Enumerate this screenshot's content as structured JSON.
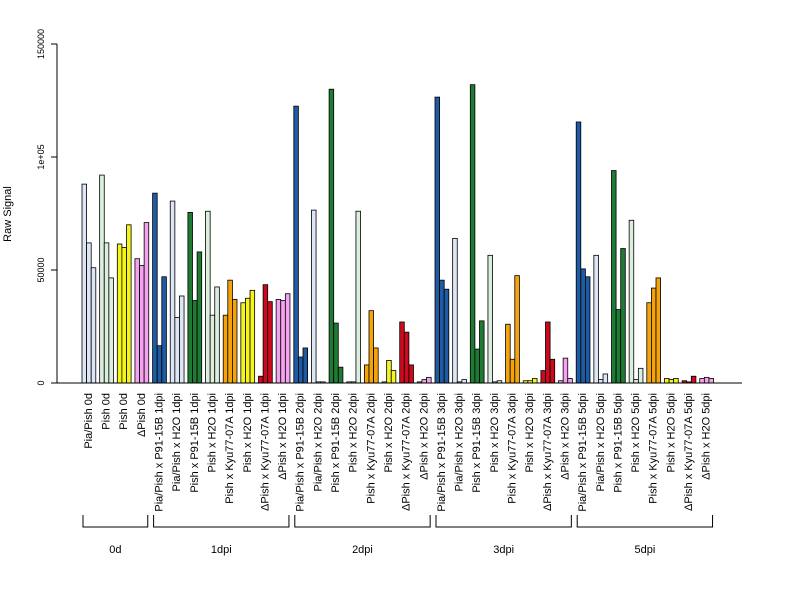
{
  "chart_data": {
    "type": "bar",
    "ylabel": "Raw Signal",
    "ylim": [
      0,
      150000
    ],
    "yticks": [
      0,
      50000,
      100000,
      150000
    ],
    "ytick_labels": [
      "0",
      "50000",
      "1e+05",
      "150000"
    ],
    "colors": {
      "Pia/Pish": "#dce6f5",
      "Pia/Pish x P91-15B": "#1f5ba3",
      "Pia/Pish x H2O": "#dce6f5",
      "Pish x P91-15B": "#1f7a33",
      "Pish x H2O (green)": "#dceedd",
      "Pish x Kyu77-07A": "#f5a30a",
      "Pish x H2O (yellow)": "#f5f51e",
      "ΔPish x Kyu77-07A": "#cc0a1e",
      "ΔPish x H2O": "#f5a3f0",
      "Pia/Pish 0d": "#dce6f5",
      "Pish 0d (green)": "#dceedd",
      "Pish 0d (yellow)": "#f5f51e",
      "ΔPish 0d": "#f5a3f0"
    },
    "groups": [
      {
        "label": "0d",
        "categories": [
          {
            "label": "Pia/Pish 0d",
            "values": [
              88000,
              62000,
              51000
            ],
            "color": "#dce6f5"
          },
          {
            "label": "Pish 0d",
            "values": [
              92000,
              62000,
              46500
            ],
            "color": "#dceedd"
          },
          {
            "label": "Pish 0d",
            "values": [
              61500,
              60000,
              70000
            ],
            "color": "#f5f51e"
          },
          {
            "label": "ΔPish 0d",
            "values": [
              55000,
              52000,
              71000
            ],
            "color": "#f5a3f0"
          }
        ]
      },
      {
        "label": "1dpi",
        "categories": [
          {
            "label": "Pia/Pish x P91-15B 1dpi",
            "values": [
              84000,
              16500,
              47000
            ],
            "color": "#1f5ba3"
          },
          {
            "label": "Pia/Pish x H2O 1dpi",
            "values": [
              80500,
              29000,
              38500
            ],
            "color": "#dce6f5"
          },
          {
            "label": "Pish x P91-15B 1dpi",
            "values": [
              75500,
              36500,
              58000
            ],
            "color": "#1f7a33"
          },
          {
            "label": "Pish x H2O 1dpi",
            "values": [
              76000,
              30000,
              42500
            ],
            "color": "#dceedd"
          },
          {
            "label": "Pish x Kyu77-07A 1dpi",
            "values": [
              30000,
              45500,
              37000
            ],
            "color": "#f5a30a"
          },
          {
            "label": "Pish x H2O 1dpi",
            "values": [
              35500,
              37500,
              41000
            ],
            "color": "#f5f51e"
          },
          {
            "label": "ΔPish x Kyu77-07A 1dpi",
            "values": [
              3000,
              43500,
              36000
            ],
            "color": "#cc0a1e"
          },
          {
            "label": "ΔPish x H2O 1dpi",
            "values": [
              37000,
              36500,
              39500
            ],
            "color": "#f5a3f0"
          }
        ]
      },
      {
        "label": "2dpi",
        "categories": [
          {
            "label": "Pia/Pish x P91-15B 2dpi",
            "values": [
              122500,
              11500,
              15500
            ],
            "color": "#1f5ba3"
          },
          {
            "label": "Pia/Pish x H2O 2dpi",
            "values": [
              76500,
              500,
              500
            ],
            "color": "#dce6f5"
          },
          {
            "label": "Pish x P91-15B 2dpi",
            "values": [
              130000,
              26500,
              7000
            ],
            "color": "#1f7a33"
          },
          {
            "label": "Pish x H2O 2dpi",
            "values": [
              500,
              500,
              76000
            ],
            "color": "#dceedd"
          },
          {
            "label": "Pish x Kyu77-07A 2dpi",
            "values": [
              8000,
              32000,
              15500
            ],
            "color": "#f5a30a"
          },
          {
            "label": "Pish x H2O 2dpi",
            "values": [
              500,
              10000,
              5500
            ],
            "color": "#f5f51e"
          },
          {
            "label": "ΔPish x Kyu77-07A 2dpi",
            "values": [
              27000,
              22500,
              8000
            ],
            "color": "#cc0a1e"
          },
          {
            "label": "ΔPish x H2O 2dpi",
            "values": [
              500,
              1500,
              2500
            ],
            "color": "#f5a3f0"
          }
        ]
      },
      {
        "label": "3dpi",
        "categories": [
          {
            "label": "Pia/Pish x P91-15B 3dpi",
            "values": [
              126500,
              45500,
              41500
            ],
            "color": "#1f5ba3"
          },
          {
            "label": "Pia/Pish x H2O 3dpi",
            "values": [
              64000,
              500,
              1500
            ],
            "color": "#dce6f5"
          },
          {
            "label": "Pish x P91-15B 3dpi",
            "values": [
              132000,
              15000,
              27500
            ],
            "color": "#1f7a33"
          },
          {
            "label": "Pish x H2O 3dpi",
            "values": [
              56500,
              500,
              1000
            ],
            "color": "#dceedd"
          },
          {
            "label": "Pish x Kyu77-07A 3dpi",
            "values": [
              26000,
              10500,
              47500
            ],
            "color": "#f5a30a"
          },
          {
            "label": "Pish x H2O 3dpi",
            "values": [
              1000,
              1000,
              2000
            ],
            "color": "#f5f51e"
          },
          {
            "label": "ΔPish x Kyu77-07A 3dpi",
            "values": [
              5500,
              27000,
              10500
            ],
            "color": "#cc0a1e"
          },
          {
            "label": "ΔPish x H2O 3dpi",
            "values": [
              1000,
              11000,
              2000
            ],
            "color": "#f5a3f0"
          }
        ]
      },
      {
        "label": "5dpi",
        "categories": [
          {
            "label": "Pia/Pish x P91-15B 5dpi",
            "values": [
              115500,
              50500,
              47000
            ],
            "color": "#1f5ba3"
          },
          {
            "label": "Pia/Pish x H2O 5dpi",
            "values": [
              56500,
              1500,
              4000
            ],
            "color": "#dce6f5"
          },
          {
            "label": "Pish x P91-15B 5dpi",
            "values": [
              94000,
              32500,
              59500
            ],
            "color": "#1f7a33"
          },
          {
            "label": "Pish x H2O 5dpi",
            "values": [
              72000,
              1500,
              6500
            ],
            "color": "#dceedd"
          },
          {
            "label": "Pish x Kyu77-07A 5dpi",
            "values": [
              35500,
              42000,
              46500
            ],
            "color": "#f5a30a"
          },
          {
            "label": "Pish x H2O 5dpi",
            "values": [
              2000,
              1500,
              2000
            ],
            "color": "#f5f51e"
          },
          {
            "label": "ΔPish x Kyu77-07A 5dpi",
            "values": [
              1000,
              500,
              3000
            ],
            "color": "#cc0a1e"
          },
          {
            "label": "ΔPish x H2O 5dpi",
            "values": [
              2000,
              2500,
              2000
            ],
            "color": "#f5a3f0"
          }
        ]
      }
    ],
    "grid": false,
    "legend": "none"
  }
}
